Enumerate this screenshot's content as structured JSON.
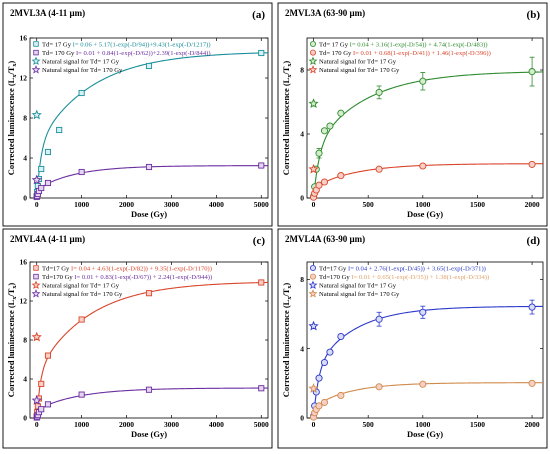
{
  "colors": {
    "red_fill": "#f7cfc6",
    "teal_fill": "#d8f2f4",
    "blue_fill": "#d9dbf7",
    "purple_fill": "#e4d6f0",
    "green_fill": "#d5eccd"
  },
  "chart_data": [
    {
      "type": "scatter",
      "panel_label": "(a)",
      "sample": "2MVL3A (4-11 μm)",
      "xlabel": "Dose (Gy)",
      "ylabel_main": "Corrected luminescence (L",
      "ylabel_sub1": "x",
      "ylabel_mid": "/T",
      "ylabel_sub2": "x",
      "ylabel_end": ")",
      "xlim": [
        -150,
        5150
      ],
      "ylim": [
        0,
        16
      ],
      "x_ticks": [
        0,
        1000,
        2000,
        3000,
        4000,
        5000
      ],
      "y_ticks": [
        0,
        4,
        8,
        12,
        16
      ],
      "legend_position": "top-left",
      "series": [
        {
          "name": "Td= 17 Gy",
          "equation": "I= 0.06 + 5.17(1-exp(-D/94))+9.43(1-exp(-D/1217))",
          "color": "#1a8f9a",
          "eq_color": "#1a8f9a",
          "marker": "square",
          "fit": {
            "c": 0.06,
            "terms": [
              [
                5.17,
                94
              ],
              [
                9.43,
                1217
              ]
            ]
          },
          "x": [
            0,
            10,
            25,
            50,
            100,
            250,
            500,
            1000,
            2500,
            5000
          ],
          "y": [
            0.2,
            0.6,
            1.2,
            1.9,
            2.9,
            4.6,
            6.8,
            10.5,
            13.2,
            14.5
          ],
          "err": [
            0,
            0,
            0,
            0,
            0,
            0,
            0,
            0.15,
            0.2,
            0.2
          ]
        },
        {
          "name": "Td= 170 Gy",
          "equation": "I= 0.01 + 0.84(1-exp(-D/62))+2.39(1-exp(-D/844))",
          "color": "#6a2fa0",
          "eq_color": "#6a2fa0",
          "marker": "square",
          "fit": {
            "c": 0.01,
            "terms": [
              [
                0.84,
                62
              ],
              [
                2.39,
                844
              ]
            ]
          },
          "x": [
            0,
            10,
            25,
            50,
            100,
            250,
            1000,
            2500,
            5000
          ],
          "y": [
            0.1,
            0.2,
            0.4,
            0.7,
            1.0,
            1.5,
            2.6,
            3.1,
            3.25
          ],
          "err": [
            0,
            0,
            0,
            0,
            0,
            0,
            0,
            0,
            0
          ]
        }
      ],
      "natural_signals": [
        {
          "name": "Natural signal for Td= 17 Gy",
          "x": 0,
          "y": 8.3,
          "color": "#1a8f9a"
        },
        {
          "name": "Natural signal for Td= 170 Gy",
          "x": 0,
          "y": 1.8,
          "color": "#6a2fa0"
        }
      ]
    },
    {
      "type": "scatter",
      "panel_label": "(b)",
      "sample": "2MVL3A (63-90 μm)",
      "xlabel": "Dose (Gy)",
      "ylabel_main": "Corrected luminescence (L",
      "ylabel_sub1": "x",
      "ylabel_mid": "/T",
      "ylabel_sub2": "x",
      "ylabel_end": ")",
      "xlim": [
        -60,
        2100
      ],
      "ylim": [
        0,
        10
      ],
      "x_ticks": [
        0,
        500,
        1000,
        1500,
        2000
      ],
      "y_ticks": [
        0,
        4,
        8
      ],
      "legend_position": "top-left",
      "series": [
        {
          "name": "Td= 17 Gy",
          "equation": "I= 0.04 + 3.16(1-exp(-D/54)) + 4.74(1-exp(-D/483))",
          "color": "#2e8b2e",
          "eq_color": "#2e8b2e",
          "marker": "circle",
          "fit": {
            "c": 0.04,
            "terms": [
              [
                3.16,
                54
              ],
              [
                4.74,
                483
              ]
            ]
          },
          "x": [
            0,
            10,
            25,
            50,
            100,
            150,
            250,
            600,
            1000,
            2000
          ],
          "y": [
            0.1,
            0.7,
            1.8,
            2.8,
            4.2,
            4.5,
            5.3,
            6.6,
            7.3,
            7.9
          ],
          "err": [
            0,
            0,
            0,
            0.3,
            0,
            0,
            0,
            0.4,
            0.55,
            0.9
          ]
        },
        {
          "name": "Td= 170 Gy",
          "equation": "I= 0.01 + 0.68(1-exp(-D/41)) + 1.46(1-exp(-D/396))",
          "color": "#d9452a",
          "eq_color": "#d9452a",
          "marker": "circle",
          "fit": {
            "c": 0.01,
            "terms": [
              [
                0.68,
                41
              ],
              [
                1.46,
                396
              ]
            ]
          },
          "x": [
            0,
            10,
            25,
            50,
            100,
            250,
            600,
            1000,
            2000
          ],
          "y": [
            0.05,
            0.3,
            0.5,
            0.8,
            1.0,
            1.4,
            1.8,
            2.0,
            2.1
          ],
          "err": [
            0,
            0,
            0,
            0,
            0,
            0,
            0,
            0,
            0
          ]
        }
      ],
      "natural_signals": [
        {
          "name": "Natural signal for Td= 17 Gy",
          "x": 0,
          "y": 5.9,
          "color": "#2e8b2e"
        },
        {
          "name": "Natural signal for Td= 170 Gy",
          "x": 0,
          "y": 1.8,
          "color": "#d9452a"
        }
      ]
    },
    {
      "type": "scatter",
      "panel_label": "(c)",
      "sample": "2MVL4A (4-11 μm)",
      "xlabel": "Dose (Gy)",
      "ylabel_main": "Corrected luminescence (L",
      "ylabel_sub1": "x",
      "ylabel_mid": "/T",
      "ylabel_sub2": "x",
      "ylabel_end": ")",
      "xlim": [
        -150,
        5150
      ],
      "ylim": [
        0,
        16
      ],
      "x_ticks": [
        0,
        1000,
        2000,
        3000,
        4000,
        5000
      ],
      "y_ticks": [
        0,
        4,
        8,
        12,
        16
      ],
      "legend_position": "top-left",
      "series": [
        {
          "name": "Td=17 Gy",
          "equation": "I= 0.04 + 4.63(1-exp(-D/82)) + 9.35(1-exp(-D/1170))",
          "color": "#d9452a",
          "eq_color": "#d9452a",
          "marker": "square",
          "fit": {
            "c": 0.04,
            "terms": [
              [
                4.63,
                82
              ],
              [
                9.35,
                1170
              ]
            ]
          },
          "x": [
            0,
            10,
            25,
            50,
            100,
            250,
            1000,
            2500,
            5000
          ],
          "y": [
            0.2,
            0.6,
            1.2,
            2.0,
            3.5,
            6.4,
            10.1,
            12.8,
            13.9
          ],
          "err": [
            0,
            0,
            0,
            0,
            0,
            0,
            0,
            0,
            0
          ]
        },
        {
          "name": "Td=170 Gy",
          "equation": "I= 0.01 + 0.83(1-exp(-D/67)) + 2.24(1-exp(-D/944))",
          "color": "#6a2fa0",
          "eq_color": "#6a2fa0",
          "marker": "square",
          "fit": {
            "c": 0.01,
            "terms": [
              [
                0.83,
                67
              ],
              [
                2.24,
                944
              ]
            ]
          },
          "x": [
            0,
            10,
            25,
            50,
            100,
            250,
            1000,
            2500,
            5000
          ],
          "y": [
            0.05,
            0.15,
            0.3,
            0.6,
            0.9,
            1.4,
            2.4,
            2.9,
            3.05
          ],
          "err": [
            0,
            0,
            0,
            0,
            0,
            0,
            0,
            0,
            0
          ]
        }
      ],
      "natural_signals": [
        {
          "name": "Natural signal for Td= 17 Gy",
          "x": 0,
          "y": 8.3,
          "color": "#d9452a"
        },
        {
          "name": "Natural signal for Td= 170 Gy",
          "x": 0,
          "y": 1.8,
          "color": "#6a2fa0"
        }
      ]
    },
    {
      "type": "scatter",
      "panel_label": "(d)",
      "sample": "2MVL4A (63-90 μm)",
      "xlabel": "Dose (Gy)",
      "ylabel_main": "Corrected luminescence (L",
      "ylabel_sub1": "x",
      "ylabel_mid": "/T",
      "ylabel_sub2": "x",
      "ylabel_end": ")",
      "xlim": [
        -60,
        2100
      ],
      "ylim": [
        0,
        9
      ],
      "x_ticks": [
        0,
        500,
        1000,
        1500,
        2000
      ],
      "y_ticks": [
        0,
        4,
        8
      ],
      "legend_position": "top-left",
      "series": [
        {
          "name": "Td=17 Gy",
          "equation": "I= 0.04 + 2.76(1-exp(-D/45)) + 3.65(1-exp(-D/371))",
          "color": "#2c39c9",
          "eq_color": "#2c39c9",
          "marker": "circle",
          "fit": {
            "c": 0.04,
            "terms": [
              [
                2.76,
                45
              ],
              [
                3.65,
                371
              ]
            ]
          },
          "x": [
            0,
            10,
            25,
            50,
            100,
            150,
            250,
            600,
            1000,
            2000
          ],
          "y": [
            0.1,
            0.7,
            1.5,
            2.3,
            3.2,
            3.8,
            4.7,
            5.7,
            6.1,
            6.4
          ],
          "err": [
            0,
            0,
            0,
            0,
            0,
            0,
            0,
            0.4,
            0.35,
            0.4
          ]
        },
        {
          "name": "Td=170 Gy",
          "equation": "I= 0.01 + 0.65(1-exp(-D/35)) + 1.38(1-exp(-D/334))",
          "color": "#d08a4a",
          "eq_color": "#e0a26a",
          "marker": "circle",
          "fit": {
            "c": 0.01,
            "terms": [
              [
                0.65,
                35
              ],
              [
                1.38,
                334
              ]
            ]
          },
          "x": [
            0,
            10,
            25,
            50,
            100,
            250,
            600,
            1000,
            2000
          ],
          "y": [
            0.05,
            0.3,
            0.5,
            0.7,
            0.9,
            1.3,
            1.8,
            1.95,
            2.0
          ],
          "err": [
            0,
            0,
            0,
            0,
            0,
            0,
            0,
            0,
            0
          ]
        }
      ],
      "natural_signals": [
        {
          "name": "Natural signal for Td= 17 Gy",
          "x": 0,
          "y": 5.3,
          "color": "#2c39c9"
        },
        {
          "name": "Natural signal for Td= 170 Gy",
          "x": 0,
          "y": 1.7,
          "color": "#d08a4a"
        }
      ]
    }
  ]
}
